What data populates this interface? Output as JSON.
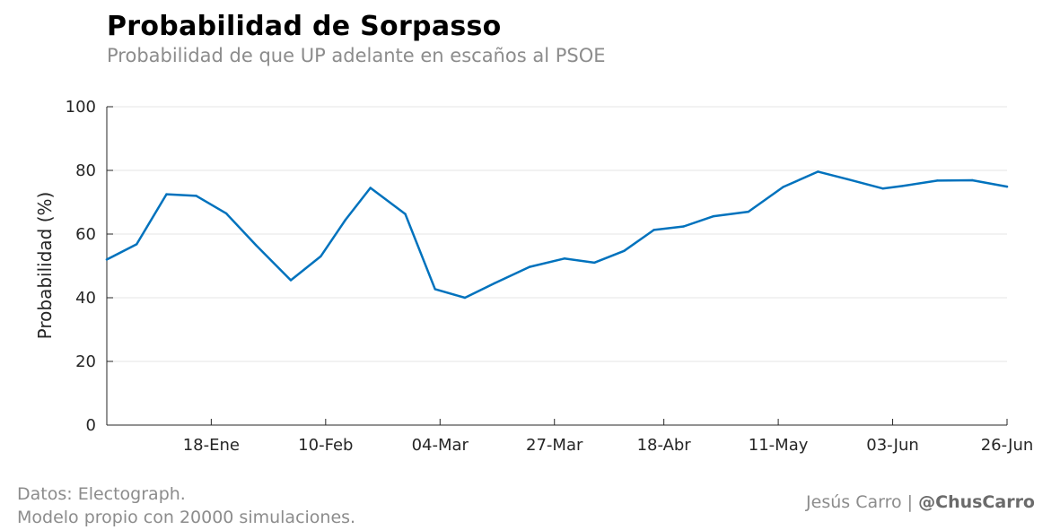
{
  "header": {
    "title": "Probabilidad de Sorpasso",
    "subtitle": "Probabilidad de que UP adelante en escaños al PSOE"
  },
  "footer": {
    "source_line1": "Datos: Electograph.",
    "source_line2": "Modelo propio con 20000 simulaciones.",
    "author": "Jesús Carro",
    "separator": "|",
    "handle": "@ChusCarro"
  },
  "colors": {
    "line": "#0072bd",
    "grid": "#e6e6e6",
    "axis": "#262626"
  },
  "chart_data": {
    "type": "line",
    "title": "Probabilidad de Sorpasso",
    "subtitle": "Probabilidad de que UP adelante en escaños al PSOE",
    "xlabel": "",
    "ylabel": "Probabilidad (%)",
    "ylim": [
      0,
      100
    ],
    "xlim": [
      "2015-12-28",
      "2016-06-26"
    ],
    "yticks": [
      0,
      20,
      40,
      60,
      80,
      100
    ],
    "xticks": [
      {
        "date": "2016-01-18",
        "label": "18-Ene"
      },
      {
        "date": "2016-02-10",
        "label": "10-Feb"
      },
      {
        "date": "2016-03-04",
        "label": "04-Mar"
      },
      {
        "date": "2016-03-27",
        "label": "27-Mar"
      },
      {
        "date": "2016-04-18",
        "label": "18-Abr"
      },
      {
        "date": "2016-05-11",
        "label": "11-May"
      },
      {
        "date": "2016-06-03",
        "label": "03-Jun"
      },
      {
        "date": "2016-06-26",
        "label": "26-Jun"
      }
    ],
    "grid": true,
    "series": [
      {
        "x": [
          "2015-12-28",
          "2016-01-03",
          "2016-01-09",
          "2016-01-15",
          "2016-01-21",
          "2016-01-27",
          "2016-02-03",
          "2016-02-09",
          "2016-02-14",
          "2016-02-19",
          "2016-02-26",
          "2016-03-03",
          "2016-03-09",
          "2016-03-15",
          "2016-03-22",
          "2016-03-29",
          "2016-04-04",
          "2016-04-10",
          "2016-04-16",
          "2016-04-22",
          "2016-04-28",
          "2016-05-05",
          "2016-05-12",
          "2016-05-19",
          "2016-05-25",
          "2016-06-01",
          "2016-06-05",
          "2016-06-12",
          "2016-06-19",
          "2016-06-26"
        ],
        "values": [
          52,
          56.8,
          72.5,
          72,
          66.5,
          56.5,
          45.5,
          53,
          64.5,
          74.5,
          66.3,
          42.7,
          40,
          44.6,
          49.7,
          52.3,
          51,
          54.7,
          61.3,
          62.4,
          65.6,
          67,
          74.8,
          79.6,
          77.2,
          74.3,
          75.1,
          76.8,
          76.9,
          74.9
        ]
      }
    ]
  }
}
